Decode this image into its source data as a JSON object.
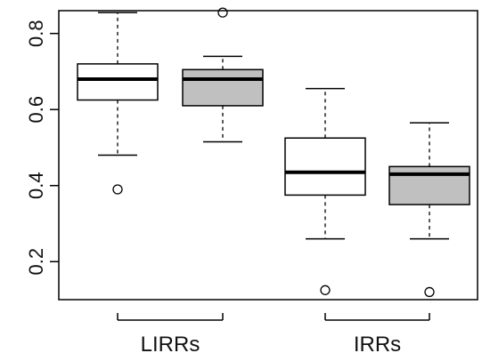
{
  "chart_data": {
    "type": "box",
    "title": "",
    "xlabel": "",
    "ylabel": "",
    "ylim": [
      0.1,
      0.86
    ],
    "yticks": [
      "0.2",
      "0.4",
      "0.6",
      "0.8"
    ],
    "groups": [
      {
        "label": "LIRRs",
        "boxes": [
          {
            "fill": "#ffffff",
            "whisker_low": 0.48,
            "q1": 0.625,
            "median": 0.68,
            "q3": 0.72,
            "whisker_high": 0.855,
            "outliers": [
              0.39
            ]
          },
          {
            "fill": "#c0c0c0",
            "whisker_low": 0.515,
            "q1": 0.61,
            "median": 0.68,
            "q3": 0.705,
            "whisker_high": 0.74,
            "outliers": [
              0.855
            ]
          }
        ]
      },
      {
        "label": "IRRs",
        "boxes": [
          {
            "fill": "#ffffff",
            "whisker_low": 0.26,
            "q1": 0.375,
            "median": 0.435,
            "q3": 0.525,
            "whisker_high": 0.655,
            "outliers": [
              0.125
            ]
          },
          {
            "fill": "#c0c0c0",
            "whisker_low": 0.26,
            "q1": 0.35,
            "median": 0.43,
            "q3": 0.45,
            "whisker_high": 0.565,
            "outliers": [
              0.12
            ]
          }
        ]
      }
    ]
  }
}
